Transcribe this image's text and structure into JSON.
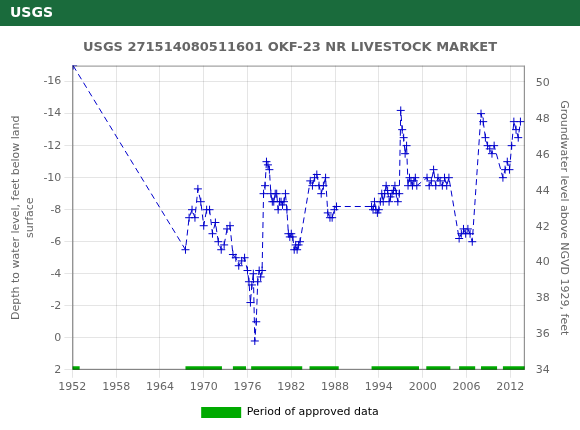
{
  "chart_data": {
    "type": "line",
    "title": "USGS 271514080511601 OKF-23 NR LIVESTOCK MARKET",
    "annotations": [
      "USGS"
    ],
    "ylabel": "Depth to water level, feet below land\nsurface",
    "y2label": "Groundwater level above NGVD 1929, feet",
    "grid": true,
    "legend": "bottom",
    "xlim": [
      1952,
      2014
    ],
    "xticks": [
      1952,
      1958,
      1964,
      1970,
      1976,
      1982,
      1988,
      1994,
      2000,
      2006,
      2012
    ],
    "ylim": [
      2,
      -17
    ],
    "yticks": [
      2,
      0,
      -2,
      -4,
      -6,
      -8,
      -10,
      -12,
      -14,
      -16
    ],
    "y2lim": [
      34,
      51
    ],
    "y2ticks": [
      34,
      36,
      38,
      40,
      42,
      44,
      46,
      48,
      50
    ],
    "x": [
      1952.1,
      1967.5,
      1968.0,
      1968.4,
      1968.8,
      1969.2,
      1969.6,
      1970.0,
      1970.4,
      1970.8,
      1971.2,
      1971.6,
      1972.0,
      1972.4,
      1972.8,
      1973.2,
      1973.6,
      1974.0,
      1974.4,
      1974.8,
      1975.2,
      1975.6,
      1976.0,
      1976.2,
      1976.4,
      1976.6,
      1976.8,
      1977.0,
      1977.2,
      1977.4,
      1977.6,
      1977.8,
      1978.0,
      1978.2,
      1978.4,
      1978.6,
      1978.8,
      1979.0,
      1979.2,
      1979.4,
      1979.6,
      1979.8,
      1980.0,
      1980.2,
      1980.4,
      1980.6,
      1980.8,
      1981.0,
      1981.2,
      1981.4,
      1981.6,
      1981.8,
      1982.0,
      1982.2,
      1982.4,
      1982.6,
      1982.8,
      1983.0,
      1983.2,
      1984.6,
      1984.9,
      1985.2,
      1985.5,
      1985.8,
      1986.1,
      1986.4,
      1986.7,
      1987.0,
      1987.3,
      1987.6,
      1987.9,
      1988.2,
      1993.0,
      1993.2,
      1993.4,
      1993.6,
      1993.8,
      1994.0,
      1994.2,
      1994.4,
      1994.6,
      1994.8,
      1995.0,
      1995.2,
      1995.4,
      1995.6,
      1995.8,
      1996.0,
      1996.2,
      1996.4,
      1996.6,
      1996.8,
      1997.0,
      1997.2,
      1997.4,
      1997.6,
      1997.8,
      1998.0,
      1998.2,
      1998.4,
      1998.6,
      1998.8,
      1999.0,
      1999.2,
      2000.6,
      2000.9,
      2001.2,
      2001.5,
      2001.8,
      2002.1,
      2002.4,
      2002.7,
      2003.0,
      2003.3,
      2003.6,
      2005.0,
      2005.3,
      2005.6,
      2005.9,
      2006.2,
      2006.5,
      2006.8,
      2008.0,
      2008.3,
      2008.6,
      2008.9,
      2009.2,
      2009.5,
      2009.8,
      2011.0,
      2011.3,
      2011.6,
      2011.9,
      2012.2,
      2012.5,
      2012.8,
      2013.1,
      2013.4
    ],
    "series": [
      {
        "type": "line",
        "color": "#0000cc",
        "line_style": "dashed",
        "marker": "plus",
        "values": [
          -17.0,
          -5.5,
          -7.5,
          -8.0,
          -7.5,
          -9.3,
          -8.5,
          -7.0,
          -8.0,
          -8.0,
          -6.5,
          -7.2,
          -6.0,
          -5.5,
          -5.8,
          -6.8,
          -7.0,
          -5.2,
          -5.0,
          -4.5,
          -4.8,
          -5.0,
          -4.2,
          -3.5,
          -2.2,
          -3.3,
          -4.0,
          0.2,
          -1.0,
          -3.5,
          -4.2,
          -3.8,
          -4.2,
          -9.0,
          -9.5,
          -11.0,
          -10.8,
          -10.5,
          -9.0,
          -8.5,
          -8.5,
          -9.0,
          -9.0,
          -8.0,
          -8.5,
          -8.5,
          -8.3,
          -8.5,
          -9.0,
          -8.0,
          -6.5,
          -6.3,
          -6.5,
          -6.3,
          -5.5,
          -5.8,
          -5.5,
          -5.8,
          -6.0,
          -9.8,
          -9.5,
          -10.0,
          -10.2,
          -9.5,
          -9.0,
          -9.5,
          -10.0,
          -7.8,
          -7.5,
          -7.5,
          -8.0,
          -8.2,
          -8.2,
          -8.0,
          -8.5,
          -8.0,
          -7.8,
          -8.0,
          -8.5,
          -9.0,
          -8.5,
          -9.0,
          -9.5,
          -9.2,
          -8.5,
          -8.8,
          -9.0,
          -9.2,
          -9.5,
          -9.0,
          -8.5,
          -9.0,
          -14.2,
          -13.0,
          -12.5,
          -11.5,
          -12.0,
          -9.5,
          -10.0,
          -9.8,
          -9.5,
          -9.8,
          -10.0,
          -9.5,
          -10.0,
          -9.5,
          -9.8,
          -10.5,
          -9.5,
          -10.0,
          -9.8,
          -9.5,
          -10.0,
          -9.5,
          -10.0,
          -6.2,
          -6.5,
          -6.8,
          -6.5,
          -6.8,
          -6.5,
          -6.0,
          -14.0,
          -13.5,
          -12.5,
          -12.0,
          -11.8,
          -11.5,
          -12.0,
          -10.0,
          -10.5,
          -11.0,
          -10.5,
          -12.0,
          -13.5,
          -13.0,
          -12.5,
          -13.5
        ]
      },
      {
        "name": "Period of approved data",
        "type": "bar",
        "orientation": "horizontal",
        "color": "#00aa00",
        "y": 2,
        "segments": [
          [
            1952.0,
            1953.0
          ],
          [
            1967.5,
            1972.5
          ],
          [
            1974.0,
            1975.8
          ],
          [
            1976.5,
            1983.5
          ],
          [
            1984.5,
            1988.5
          ],
          [
            1993.0,
            1999.5
          ],
          [
            2000.5,
            2003.8
          ],
          [
            2005.0,
            2007.2
          ],
          [
            2008.0,
            2010.2
          ],
          [
            2011.0,
            2014.0
          ]
        ]
      }
    ]
  }
}
